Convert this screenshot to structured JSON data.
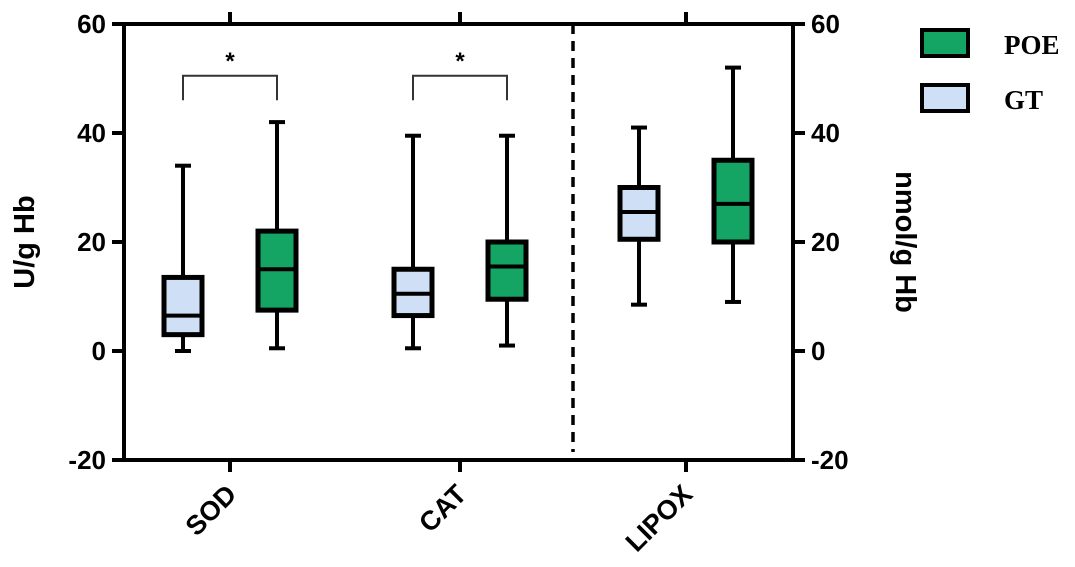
{
  "chart_data": {
    "type": "box",
    "categories": [
      "SOD",
      "CAT",
      "LIPOX"
    ],
    "ylabel": "U/g Hb",
    "y2label": "nmol/g Hb",
    "ylim": [
      -20,
      60
    ],
    "y2lim": [
      -20,
      60
    ],
    "yticks": [
      -20,
      0,
      20,
      40,
      60
    ],
    "y2ticks": [
      -20,
      0,
      20,
      40,
      60
    ],
    "separator_after_category": "CAT",
    "legend_position": "top-right",
    "series": [
      {
        "name": "GT",
        "color": "#cfdff5",
        "boxes": [
          {
            "category": "SOD",
            "min": 0,
            "q1": 3,
            "median": 6.5,
            "q3": 13.5,
            "max": 34
          },
          {
            "category": "CAT",
            "min": 0.5,
            "q1": 6.5,
            "median": 10.5,
            "q3": 15,
            "max": 39.5
          },
          {
            "category": "LIPOX",
            "min": 8.5,
            "q1": 20.5,
            "median": 25.5,
            "q3": 30,
            "max": 41
          }
        ]
      },
      {
        "name": "POE",
        "color": "#14a464",
        "boxes": [
          {
            "category": "SOD",
            "min": 0.5,
            "q1": 7.5,
            "median": 15,
            "q3": 22,
            "max": 42
          },
          {
            "category": "CAT",
            "min": 1,
            "q1": 9.5,
            "median": 15.5,
            "q3": 20,
            "max": 39.5
          },
          {
            "category": "LIPOX",
            "min": 9,
            "q1": 20,
            "median": 27,
            "q3": 35,
            "max": 52
          }
        ]
      }
    ],
    "annotations": [
      {
        "category": "SOD",
        "text": "*",
        "y": 50.5
      },
      {
        "category": "CAT",
        "text": "*",
        "y": 50.5
      }
    ]
  }
}
